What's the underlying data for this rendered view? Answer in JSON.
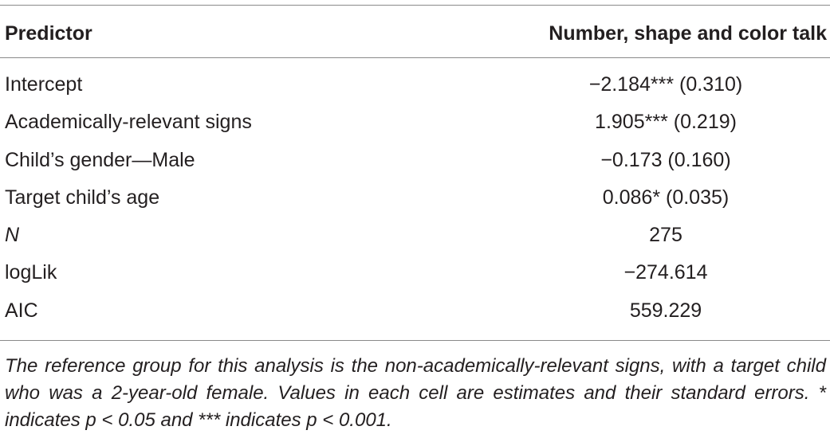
{
  "table": {
    "headers": {
      "predictor": "Predictor",
      "column": "Number, shape and color talk"
    },
    "rows": [
      {
        "predictor": "Intercept",
        "value": "−2.184*** (0.310)",
        "italic": false
      },
      {
        "predictor": "Academically-relevant signs",
        "value": "1.905*** (0.219)",
        "italic": false
      },
      {
        "predictor": "Child’s gender—Male",
        "value": "−0.173 (0.160)",
        "italic": false
      },
      {
        "predictor": "Target child’s age",
        "value": "0.086* (0.035)",
        "italic": false
      },
      {
        "predictor": "N",
        "value": "275",
        "italic": true
      },
      {
        "predictor": "logLik",
        "value": "−274.614",
        "italic": false
      },
      {
        "predictor": "AIC",
        "value": "559.229",
        "italic": false
      }
    ],
    "note": "The reference group for this analysis is the non-academically-relevant signs, with a target child who was a 2-year-old female. Values in each cell are estimates and their standard errors. * indicates p < 0.05 and *** indicates p < 0.001."
  }
}
